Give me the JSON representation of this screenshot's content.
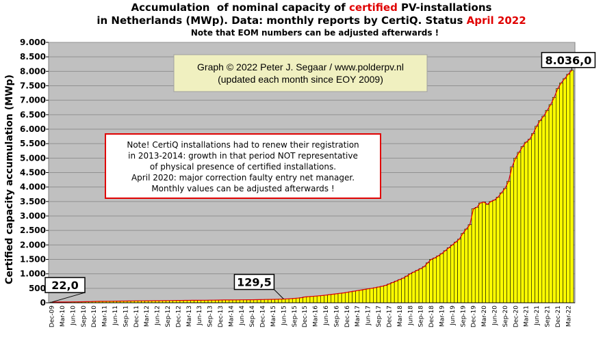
{
  "chart_data": {
    "type": "bar",
    "title_parts": [
      [
        "Accumulation  of nominal capacity of ",
        "certified",
        " PV-installations"
      ],
      [
        "in Netherlands (MWp). Data: monthly reports by CertiQ. Status ",
        "April 2022",
        ""
      ]
    ],
    "subtitle": "Note that EOM numbers can be adjusted afterwards  !",
    "y_label": "Certified capacity accumulation (MWp)",
    "credit": [
      "Graph © 2022 Peter J. Segaar / www.polderpv.nl",
      "(updated each month since EOY 2009)"
    ],
    "note": [
      "Note! CertiQ installations had to renew their registration",
      "in 2013-2014:  growth in that period NOT representative",
      "of physical presence of certified installations.",
      "April 2020:  major  correction faulty entry net manager.",
      "Monthly  values can be adjusted afterwards !"
    ],
    "color": "#ffff00",
    "grid": true,
    "ylim": [
      0,
      9000
    ],
    "yticks": [
      0,
      500,
      {
        "value": 1000,
        "label": "1.000"
      },
      {
        "value": 1500,
        "label": "1.500"
      },
      {
        "value": 2000,
        "label": "2.000"
      },
      {
        "value": 2500,
        "label": "2.500"
      },
      {
        "value": 3000,
        "label": "3.000"
      },
      {
        "value": 3500,
        "label": "3.500"
      },
      {
        "value": 4000,
        "label": "4.000"
      },
      {
        "value": 4500,
        "label": "4.500"
      },
      {
        "value": 5000,
        "label": "5.000"
      },
      {
        "value": 5500,
        "label": "5.500"
      },
      {
        "value": 6000,
        "label": "6.000"
      },
      {
        "value": 6500,
        "label": "6.500"
      },
      {
        "value": 7000,
        "label": "7.000"
      },
      {
        "value": 7500,
        "label": "7.500"
      },
      {
        "value": 8000,
        "label": "8.000"
      },
      {
        "value": 8500,
        "label": "8.500"
      },
      {
        "value": 9000,
        "label": "9.000"
      }
    ],
    "categories": [
      "Dec-09",
      null,
      null,
      "Mar-10",
      null,
      null,
      "Jun-10",
      null,
      null,
      "Sep-10",
      null,
      null,
      "Dec-10",
      null,
      null,
      "Mar-11",
      null,
      null,
      "Jun-11",
      null,
      null,
      "Sep-11",
      null,
      null,
      "Dec-11",
      null,
      null,
      "Mar-12",
      null,
      null,
      "Jun-12",
      null,
      null,
      "Sep-12",
      null,
      null,
      "Dec-12",
      null,
      null,
      "Mar-13",
      null,
      null,
      "Jun-13",
      null,
      null,
      "Sep-13",
      null,
      null,
      "Dec-13",
      null,
      null,
      "Mar-14",
      null,
      null,
      "Jun-14",
      null,
      null,
      "Sep-14",
      null,
      null,
      "Dec-14",
      null,
      null,
      "Mar-15",
      null,
      null,
      "Jun-15",
      null,
      null,
      "Sep-15",
      null,
      null,
      "Dec-15",
      null,
      null,
      "Mar-16",
      null,
      null,
      "Jun-16",
      null,
      null,
      "Sep-16",
      null,
      null,
      "Dec-16",
      null,
      null,
      "Mar-17",
      null,
      null,
      "Jun-17",
      null,
      null,
      "Sep-17",
      null,
      null,
      "Dec-17",
      null,
      null,
      "Mar-18",
      null,
      null,
      "Jun-18",
      null,
      null,
      "Sep-18",
      null,
      null,
      "Dec-18",
      null,
      null,
      "Mar-19",
      null,
      null,
      "Jun-19",
      null,
      null,
      "Sep-19",
      null,
      null,
      "Dec-19",
      null,
      null,
      "Mar-20",
      null,
      null,
      "Jun-20",
      null,
      null,
      "Sep-20",
      null,
      null,
      "Dec-20",
      null,
      null,
      "Mar-21",
      null,
      null,
      "Jun-21",
      null,
      null,
      "Sep-21",
      null,
      null,
      "Dec-21",
      null,
      null,
      "Mar-22",
      null
    ],
    "values": [
      22,
      24,
      25,
      26,
      27,
      28,
      30,
      31,
      33,
      35,
      37,
      40,
      45,
      47,
      49,
      50,
      52,
      53,
      55,
      56,
      58,
      60,
      61,
      63,
      65,
      66,
      67,
      68,
      69,
      70,
      71,
      72,
      74,
      75,
      76,
      78,
      80,
      81,
      82,
      83,
      84,
      85,
      86,
      87,
      88,
      89,
      90,
      92,
      95,
      96,
      97,
      98,
      99,
      100,
      101,
      102,
      103,
      104,
      106,
      108,
      112,
      114,
      116,
      118,
      121,
      125,
      129.5,
      135,
      142,
      150,
      160,
      175,
      200,
      210,
      220,
      230,
      240,
      250,
      265,
      280,
      295,
      310,
      325,
      340,
      360,
      380,
      400,
      420,
      440,
      460,
      480,
      500,
      520,
      545,
      570,
      600,
      650,
      700,
      750,
      800,
      850,
      920,
      1000,
      1060,
      1120,
      1180,
      1250,
      1380,
      1500,
      1550,
      1620,
      1700,
      1800,
      1900,
      2000,
      2100,
      2200,
      2400,
      2550,
      2700,
      3250,
      3300,
      3450,
      3480,
      3400,
      3500,
      3550,
      3650,
      3800,
      3950,
      4200,
      4700,
      5000,
      5200,
      5400,
      5550,
      5650,
      5850,
      6100,
      6300,
      6450,
      6650,
      6850,
      7100,
      7400,
      7600,
      7750,
      7900,
      8036
    ],
    "value_labels": [
      "22,0",
      null,
      null,
      null,
      null,
      null,
      null,
      null,
      null,
      null,
      null,
      null,
      null,
      null,
      null,
      null,
      null,
      null,
      null,
      null,
      null,
      null,
      null,
      null,
      null,
      null,
      null,
      null,
      null,
      null,
      null,
      null,
      null,
      null,
      null,
      null,
      null,
      null,
      null,
      null,
      null,
      null,
      null,
      null,
      null,
      null,
      null,
      null,
      null,
      null,
      null,
      null,
      null,
      null,
      null,
      null,
      null,
      null,
      null,
      null,
      null,
      null,
      null,
      null,
      null,
      null,
      "129,5",
      null,
      null,
      null,
      null,
      null,
      null,
      null,
      null,
      null,
      null,
      null,
      null,
      null,
      null,
      null,
      null,
      null,
      null,
      null,
      null,
      null,
      null,
      null,
      null,
      null,
      null,
      null,
      null,
      null,
      null,
      null,
      null,
      null,
      null,
      null,
      null,
      null,
      null,
      null,
      null,
      null,
      null,
      null,
      null,
      null,
      null,
      null,
      null,
      null,
      null,
      null,
      null,
      null,
      null,
      null,
      null,
      null,
      null,
      null,
      null,
      null,
      null,
      null,
      null,
      null,
      null,
      null,
      null,
      null,
      null,
      null,
      null,
      null,
      null,
      null,
      null,
      null,
      null,
      null,
      null,
      null,
      "8.036,0"
    ]
  }
}
